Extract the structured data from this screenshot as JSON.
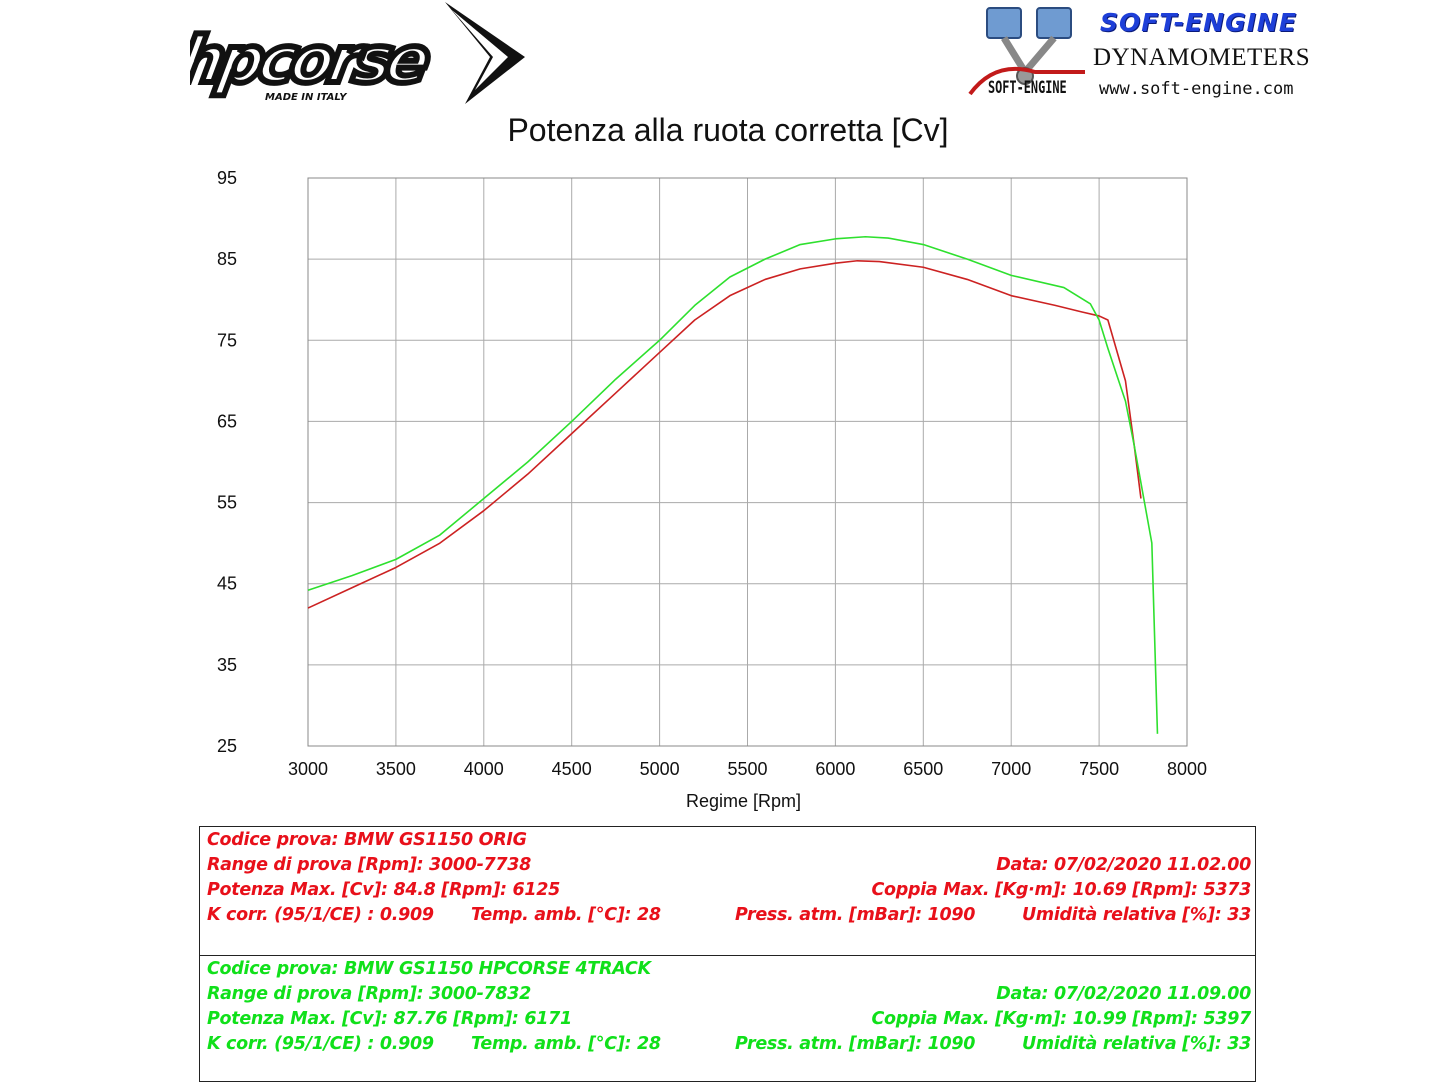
{
  "header": {
    "brand_left": "hpcorse",
    "brand_left_tagline": "MADE IN ITALY",
    "brand_right_title": "SOFT-ENGINE",
    "brand_right_subtitle": "DYNAMOMETERS",
    "brand_right_logo_text": "SOFT-ENGINE",
    "brand_right_url": "www.soft-engine.com",
    "colors": {
      "hp_logo": "#111111",
      "se_title": "#1e3fd8"
    }
  },
  "chart_data": {
    "type": "line",
    "title": "Potenza alla ruota corretta [Cv]",
    "xlabel": "Regime [Rpm]",
    "ylabel": "",
    "xlim": [
      3000,
      8000
    ],
    "ylim": [
      25,
      95
    ],
    "xticks": [
      3000,
      3500,
      4000,
      4500,
      5000,
      5500,
      6000,
      6500,
      7000,
      7500,
      8000
    ],
    "yticks": [
      25,
      35,
      45,
      55,
      65,
      75,
      85,
      95
    ],
    "grid": true,
    "series": [
      {
        "color": "#cc2222",
        "x": [
          3000,
          3250,
          3500,
          3750,
          4000,
          4250,
          4500,
          4750,
          5000,
          5200,
          5400,
          5600,
          5800,
          6000,
          6125,
          6250,
          6500,
          6750,
          7000,
          7250,
          7400,
          7500,
          7550,
          7650,
          7700,
          7738
        ],
        "y": [
          42.0,
          44.5,
          47.0,
          50.0,
          54.0,
          58.5,
          63.5,
          68.5,
          73.5,
          77.5,
          80.5,
          82.5,
          83.8,
          84.5,
          84.8,
          84.7,
          84.0,
          82.5,
          80.5,
          79.3,
          78.5,
          78.0,
          77.5,
          70.0,
          62.0,
          55.5
        ]
      },
      {
        "color": "#2ee02e",
        "x": [
          3000,
          3250,
          3500,
          3750,
          4000,
          4250,
          4500,
          4750,
          5000,
          5200,
          5400,
          5600,
          5800,
          6000,
          6171,
          6300,
          6500,
          6750,
          7000,
          7300,
          7450,
          7500,
          7550,
          7650,
          7700,
          7750,
          7800,
          7832
        ],
        "y": [
          44.2,
          46.0,
          48.0,
          51.0,
          55.5,
          60.0,
          65.0,
          70.2,
          75.0,
          79.3,
          82.8,
          85.0,
          86.8,
          87.5,
          87.76,
          87.6,
          86.8,
          85.0,
          83.0,
          81.5,
          79.5,
          77.5,
          74.0,
          67.5,
          62.0,
          56.0,
          50.0,
          26.5
        ]
      }
    ]
  },
  "info": {
    "run1": {
      "codice": "Codice prova: BMW GS1150 ORIG",
      "range": "Range di prova [Rpm]: 3000-7738",
      "data": "Data: 07/02/2020   11.02.00",
      "potenza": "Potenza Max. [Cv]: 84.8   [Rpm]: 6125",
      "coppia": "Coppia Max. [Kg·m]: 10.69   [Rpm]: 5373",
      "kcorr": "K corr. (95/1/CE) : 0.909",
      "temp": "Temp. amb. [°C]: 28",
      "press": "Press. atm. [mBar]: 1090",
      "umid": "Umidità relativa [%]: 33"
    },
    "run2": {
      "codice": "Codice prova: BMW GS1150 HPCORSE 4TRACK",
      "range": "Range di prova [Rpm]: 3000-7832",
      "data": "Data: 07/02/2020   11.09.00",
      "potenza": "Potenza Max. [Cv]: 87.76   [Rpm]: 6171",
      "coppia": "Coppia Max. [Kg·m]: 10.99   [Rpm]: 5397",
      "kcorr": "K corr. (95/1/CE) : 0.909",
      "temp": "Temp. amb. [°C]: 28",
      "press": "Press. atm. [mBar]: 1090",
      "umid": "Umidità relativa [%]: 33"
    }
  }
}
